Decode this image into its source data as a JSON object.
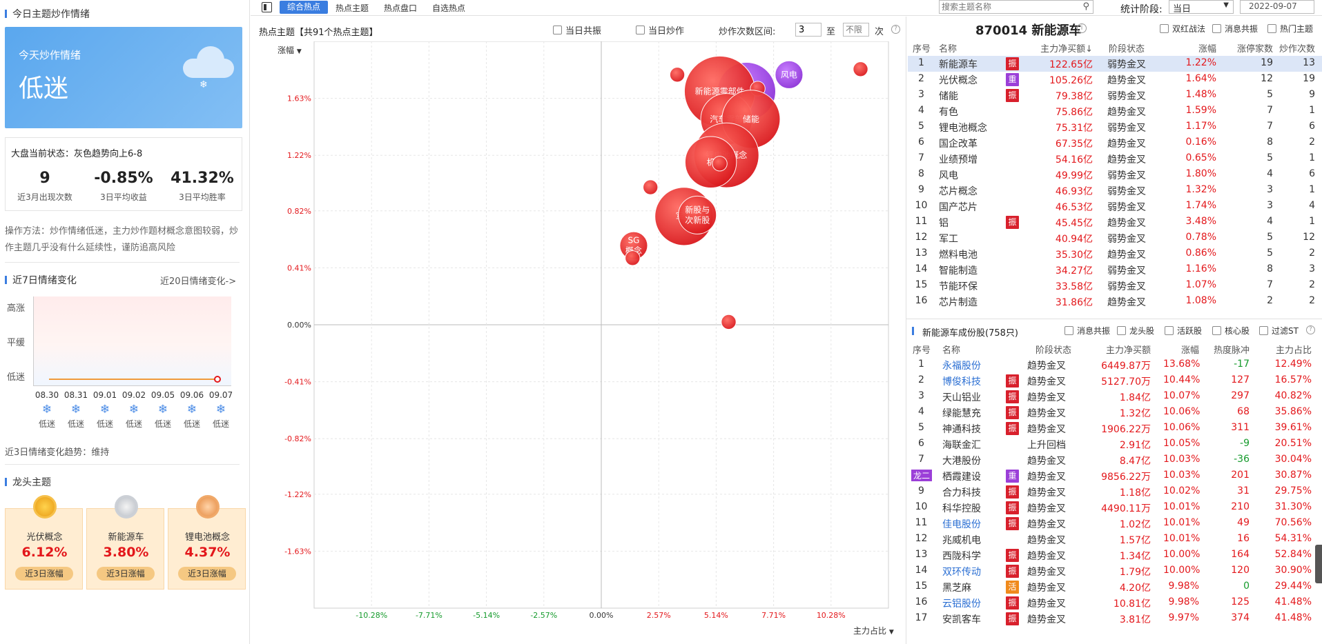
{
  "left": {
    "section1_title": "今日主题炒作情绪",
    "mood_card": {
      "title": "今天炒作情绪",
      "value": "低迷"
    },
    "market_status": "大盘当前状态：灰色趋势向上6-8",
    "stats": [
      {
        "value": "9",
        "label": "近3月出现次数"
      },
      {
        "value": "-0.85%",
        "label": "3日平均收益"
      },
      {
        "value": "41.32%",
        "label": "3日平均胜率"
      }
    ],
    "method": "操作方法：炒作情绪低迷，主力炒作题材概念意图较弱，炒作主题几乎没有什么延续性，谨防追高风险",
    "section2_title": "近7日情绪变化",
    "section2_link": "近20日情绪变化->",
    "chart_levels": [
      "高涨",
      "平缓",
      "低迷"
    ],
    "days": [
      {
        "date": "08.30",
        "mood": "低迷"
      },
      {
        "date": "08.31",
        "mood": "低迷"
      },
      {
        "date": "09.01",
        "mood": "低迷"
      },
      {
        "date": "09.02",
        "mood": "低迷"
      },
      {
        "date": "09.05",
        "mood": "低迷"
      },
      {
        "date": "09.06",
        "mood": "低迷"
      },
      {
        "date": "09.07",
        "mood": "低迷"
      }
    ],
    "trend": "近3日情绪变化趋势：维持",
    "section3_title": "龙头主题",
    "leaders": [
      {
        "name": "光伏概念",
        "pct": "6.12%",
        "btn": "近3日涨幅"
      },
      {
        "name": "新能源车",
        "pct": "3.80%",
        "btn": "近3日涨幅"
      },
      {
        "name": "锂电池概念",
        "pct": "4.37%",
        "btn": "近3日涨幅"
      }
    ]
  },
  "tabs": [
    "综合热点",
    "热点主题",
    "热点盘口",
    "自选热点"
  ],
  "search_placeholder": "搜索主题名称",
  "period_label": "统计阶段:",
  "period_value": "当日",
  "date_value": "2022-09-07",
  "middle": {
    "title": "热点主题【共91个热点主题】",
    "cb1": "当日共振",
    "cb2": "当日炒作",
    "range_label": "炒作次数区间:",
    "range_from": "3",
    "range_to_word": "至",
    "range_to_placeholder": "不限",
    "range_unit": "次",
    "y_selector": "涨幅",
    "x_selector": "主力占比"
  },
  "chart_data": {
    "type": "scatter",
    "xlabel": "主力占比",
    "ylabel": "涨幅",
    "x_ticks": [
      "-10.28%",
      "-7.71%",
      "-5.14%",
      "-2.57%",
      "0.00%",
      "2.57%",
      "5.14%",
      "7.71%",
      "10.28%"
    ],
    "y_ticks": [
      "1.63%",
      "1.22%",
      "0.82%",
      "0.41%",
      "0.00%",
      "-0.41%",
      "-0.82%",
      "-1.22%",
      "-1.63%"
    ],
    "xlim": [
      -12.85,
      12.85
    ],
    "ylim": [
      -2.04,
      2.04
    ],
    "points": [
      {
        "x": 3.4,
        "y": 1.8,
        "r": 0.33,
        "label": ""
      },
      {
        "x": 6.5,
        "y": 1.68,
        "r": 1.3,
        "label": "",
        "purple": true
      },
      {
        "x": 8.4,
        "y": 1.8,
        "r": 0.62,
        "label": "风电",
        "purple": true
      },
      {
        "x": 5.3,
        "y": 1.68,
        "r": 1.58,
        "label": "新能源零部件"
      },
      {
        "x": 7.0,
        "y": 1.7,
        "r": 0.33,
        "label": ""
      },
      {
        "x": 5.6,
        "y": 1.48,
        "r": 1.15,
        "label": "汽车零部"
      },
      {
        "x": 6.7,
        "y": 1.48,
        "r": 1.3,
        "label": "储能"
      },
      {
        "x": 11.6,
        "y": 1.84,
        "r": 0.33,
        "label": ""
      },
      {
        "x": 5.6,
        "y": 1.22,
        "r": 1.45,
        "label": "锂电池概念"
      },
      {
        "x": 4.9,
        "y": 1.17,
        "r": 1.15,
        "label": "机"
      },
      {
        "x": 5.3,
        "y": 1.16,
        "r": 0.33,
        "label": ""
      },
      {
        "x": 2.2,
        "y": 0.99,
        "r": 0.33,
        "label": ""
      },
      {
        "x": 3.7,
        "y": 0.78,
        "r": 1.3,
        "label": "军工"
      },
      {
        "x": 4.3,
        "y": 0.79,
        "r": 0.85,
        "label": "新股与次新股"
      },
      {
        "x": 1.45,
        "y": 0.57,
        "r": 0.62,
        "label": "SG概念"
      },
      {
        "x": 1.4,
        "y": 0.48,
        "r": 0.33,
        "label": ""
      },
      {
        "x": 5.7,
        "y": 0.02,
        "r": 0.33,
        "label": ""
      }
    ]
  },
  "right": {
    "code_title": "870014 新能源车",
    "cbs": [
      "双红战法",
      "消息共振",
      "热门主题"
    ],
    "headers": [
      "序号",
      "名称",
      "主力净买额↓",
      "阶段状态",
      "涨幅",
      "涨停家数",
      "炒作次数"
    ],
    "rows": [
      [
        "1",
        "新能源车",
        "振",
        "122.65亿",
        "弱势金叉",
        "1.22%",
        "19",
        "13"
      ],
      [
        "2",
        "光伏概念",
        "重",
        "105.26亿",
        "趋势金叉",
        "1.64%",
        "12",
        "19"
      ],
      [
        "3",
        "储能",
        "振",
        "79.38亿",
        "弱势金叉",
        "1.48%",
        "5",
        "9"
      ],
      [
        "4",
        "有色",
        "",
        "75.86亿",
        "趋势金叉",
        "1.59%",
        "7",
        "1"
      ],
      [
        "5",
        "锂电池概念",
        "",
        "75.31亿",
        "弱势金叉",
        "1.17%",
        "7",
        "6"
      ],
      [
        "6",
        "国企改革",
        "",
        "67.35亿",
        "趋势金叉",
        "0.16%",
        "8",
        "2"
      ],
      [
        "7",
        "业绩预增",
        "",
        "54.16亿",
        "趋势金叉",
        "0.65%",
        "5",
        "1"
      ],
      [
        "8",
        "风电",
        "",
        "49.99亿",
        "弱势金叉",
        "1.80%",
        "4",
        "6"
      ],
      [
        "9",
        "芯片概念",
        "",
        "46.93亿",
        "弱势金叉",
        "1.32%",
        "3",
        "1"
      ],
      [
        "10",
        "国产芯片",
        "",
        "46.53亿",
        "弱势金叉",
        "1.74%",
        "3",
        "4"
      ],
      [
        "11",
        "铝",
        "振",
        "45.45亿",
        "趋势金叉",
        "3.48%",
        "4",
        "1"
      ],
      [
        "12",
        "军工",
        "",
        "40.94亿",
        "弱势金叉",
        "0.78%",
        "5",
        "12"
      ],
      [
        "13",
        "燃料电池",
        "",
        "35.30亿",
        "趋势金叉",
        "0.86%",
        "5",
        "2"
      ],
      [
        "14",
        "智能制造",
        "",
        "34.27亿",
        "弱势金叉",
        "1.16%",
        "8",
        "3"
      ],
      [
        "15",
        "节能环保",
        "",
        "33.58亿",
        "弱势金叉",
        "1.07%",
        "7",
        "2"
      ],
      [
        "16",
        "芯片制造",
        "",
        "31.86亿",
        "趋势金叉",
        "1.08%",
        "2",
        "2"
      ]
    ],
    "stock_title": "新能源车成份股(758只)",
    "stock_cbs": [
      "消息共振",
      "龙头股",
      "活跃股",
      "核心股",
      "过滤ST"
    ],
    "stock_headers": [
      "序号",
      "名称",
      "阶段状态",
      "主力净买额",
      "涨幅",
      "热度脉冲",
      "主力占比"
    ],
    "stocks": [
      [
        "1",
        "永福股份",
        "",
        "趋势金叉",
        "6449.87万",
        "13.68%",
        "-17",
        "12.49%",
        true
      ],
      [
        "2",
        "博俊科技",
        "振",
        "趋势金叉",
        "5127.70万",
        "10.44%",
        "127",
        "16.57%",
        true
      ],
      [
        "3",
        "天山铝业",
        "振",
        "趋势金叉",
        "1.84亿",
        "10.07%",
        "297",
        "40.82%",
        false
      ],
      [
        "4",
        "绿能慧充",
        "振",
        "趋势金叉",
        "1.32亿",
        "10.06%",
        "68",
        "35.86%",
        false
      ],
      [
        "5",
        "神通科技",
        "振",
        "趋势金叉",
        "1906.22万",
        "10.06%",
        "311",
        "39.61%",
        false
      ],
      [
        "6",
        "海联金汇",
        "",
        "上升回档",
        "2.91亿",
        "10.05%",
        "-9",
        "20.51%",
        false
      ],
      [
        "7",
        "大港股份",
        "",
        "趋势金叉",
        "8.47亿",
        "10.03%",
        "-36",
        "30.04%",
        false
      ],
      [
        "龙二",
        "栖霞建设",
        "重",
        "趋势金叉",
        "9856.22万",
        "10.03%",
        "201",
        "30.87%",
        false
      ],
      [
        "9",
        "合力科技",
        "振",
        "趋势金叉",
        "1.18亿",
        "10.02%",
        "31",
        "29.75%",
        false
      ],
      [
        "10",
        "科华控股",
        "振",
        "趋势金叉",
        "4490.11万",
        "10.01%",
        "210",
        "31.30%",
        false
      ],
      [
        "11",
        "佳电股份",
        "振",
        "趋势金叉",
        "1.02亿",
        "10.01%",
        "49",
        "70.56%",
        true
      ],
      [
        "12",
        "兆威机电",
        "",
        "趋势金叉",
        "1.57亿",
        "10.01%",
        "16",
        "54.31%",
        false
      ],
      [
        "13",
        "西陇科学",
        "振",
        "趋势金叉",
        "1.34亿",
        "10.00%",
        "164",
        "52.84%",
        false
      ],
      [
        "14",
        "双环传动",
        "振",
        "趋势金叉",
        "1.79亿",
        "10.00%",
        "120",
        "30.90%",
        true
      ],
      [
        "15",
        "黑芝麻",
        "活",
        "趋势金叉",
        "4.20亿",
        "9.98%",
        "0",
        "29.44%",
        false
      ],
      [
        "16",
        "云铝股份",
        "振",
        "趋势金叉",
        "10.81亿",
        "9.98%",
        "125",
        "41.48%",
        true
      ],
      [
        "17",
        "安凯客车",
        "振",
        "趋势金叉",
        "3.81亿",
        "9.97%",
        "374",
        "41.48%",
        false
      ]
    ]
  },
  "colors": {
    "accent": "#3a7de0",
    "up": "#e3171b",
    "down": "#149a2b",
    "tag_zhen": "#d8202c",
    "tag_zhong": "#9b3fd8",
    "tag_huo": "#f08a1c",
    "tag_long": "#9b3fd8"
  }
}
